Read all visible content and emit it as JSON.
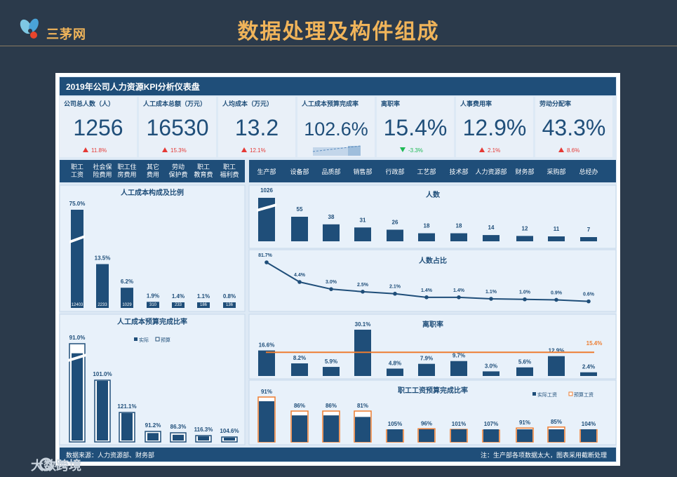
{
  "slide": {
    "brand": "三茅网",
    "title": "数据处理及构件组成"
  },
  "dashboard": {
    "title": "2019年公司人力资源KPI分析仪表盘",
    "footer_left": "数据来源：人力资源部、财务部",
    "footer_right": "注：生产部各项数据太大，图表采用截断处理"
  },
  "watermark": {
    "text": "大数跨境"
  },
  "colors": {
    "navy": "#1f4e79",
    "panel": "#dde9f5",
    "accent": "#f0b45a",
    "up": "#e53935",
    "down": "#1db954",
    "orange": "#ed7d31"
  },
  "kpis": [
    {
      "label": "公司总人数（人）",
      "value": "1256",
      "change": "11.8%",
      "dir": "up"
    },
    {
      "label": "人工成本总额（万元）",
      "value": "16530",
      "change": "15.3%",
      "dir": "up"
    },
    {
      "label": "人均成本（万元）",
      "value": "13.2",
      "change": "12.1%",
      "dir": "up"
    },
    {
      "label": "人工成本预算完成率",
      "value": "102.6%",
      "change": "",
      "dir": "none"
    },
    {
      "label": "离职率",
      "value": "15.4%",
      "change": "-3.3%",
      "dir": "down"
    },
    {
      "label": "人事费用率",
      "value": "12.9%",
      "change": "2.1%",
      "dir": "up"
    },
    {
      "label": "劳动分配率",
      "value": "43.3%",
      "change": "8.6%",
      "dir": "up"
    }
  ],
  "chart_data": [
    {
      "type": "bar",
      "title": "人工成本构成及比例",
      "categories": [
        "职工\n工资",
        "社会保\n险费用",
        "职工住\n房费用",
        "其它\n费用",
        "劳动\n保护费",
        "职工\n教育费",
        "职工\n福利费"
      ],
      "percent_labels": [
        "75.0%",
        "13.5%",
        "6.2%",
        "1.9%",
        "1.4%",
        "1.1%",
        "0.8%"
      ],
      "values": [
        12403,
        2233,
        1029,
        310,
        233,
        186,
        136
      ],
      "value_labels": [
        "12403",
        "2233",
        "1029",
        "310",
        "233",
        "186",
        "136"
      ],
      "truncated": [
        true,
        false,
        false,
        false,
        false,
        false,
        false
      ]
    },
    {
      "type": "bar",
      "title": "人工成本预算完成比率",
      "legend": [
        "实际",
        "预算"
      ],
      "categories": [
        "职工\n工资",
        "社会保\n险费用",
        "职工住\n房费用",
        "其它\n费用",
        "劳动\n保护费",
        "职工\n教育费",
        "职工\n福利费"
      ],
      "values": [
        91.0,
        101.0,
        121.1,
        91.2,
        86.3,
        116.3,
        104.6
      ],
      "value_labels": [
        "91.0%",
        "101.0%",
        "121.1%",
        "91.2%",
        "86.3%",
        "116.3%",
        "104.6%"
      ],
      "truncated": [
        true,
        false,
        false,
        false,
        false,
        false,
        false
      ]
    },
    {
      "type": "bar",
      "title": "人数",
      "categories": [
        "生产部",
        "设备部",
        "品质部",
        "销售部",
        "行政部",
        "工艺部",
        "技术部",
        "人力资源部",
        "财务部",
        "采购部",
        "总经办"
      ],
      "values": [
        1026,
        55,
        38,
        31,
        26,
        18,
        18,
        14,
        12,
        11,
        7
      ],
      "value_labels": [
        "1026",
        "55",
        "38",
        "31",
        "26",
        "18",
        "18",
        "14",
        "12",
        "11",
        "7"
      ],
      "truncated": [
        true,
        false,
        false,
        false,
        false,
        false,
        false,
        false,
        false,
        false,
        false
      ]
    },
    {
      "type": "line",
      "title": "人数占比",
      "categories": [
        "生产部",
        "设备部",
        "品质部",
        "销售部",
        "行政部",
        "工艺部",
        "技术部",
        "人力资源部",
        "财务部",
        "采购部",
        "总经办"
      ],
      "values": [
        81.7,
        4.4,
        3.0,
        2.5,
        2.1,
        1.4,
        1.4,
        1.1,
        1.0,
        0.9,
        0.6
      ],
      "value_labels": [
        "81.7%",
        "4.4%",
        "3.0%",
        "2.5%",
        "2.1%",
        "1.4%",
        "1.4%",
        "1.1%",
        "1.0%",
        "0.9%",
        "0.6%"
      ]
    },
    {
      "type": "bar",
      "title": "离职率",
      "categories": [
        "生产部",
        "设备部",
        "品质部",
        "销售部",
        "行政部",
        "工艺部",
        "技术部",
        "人力资源部",
        "财务部",
        "采购部",
        "总经办"
      ],
      "values": [
        16.6,
        8.2,
        5.9,
        30.1,
        4.8,
        7.9,
        9.7,
        3.0,
        5.6,
        12.9,
        2.4
      ],
      "value_labels": [
        "16.6%",
        "8.2%",
        "5.9%",
        "30.1%",
        "4.8%",
        "7.9%",
        "9.7%",
        "3.0%",
        "5.6%",
        "12.9%",
        "2.4%"
      ],
      "average": 15.4,
      "average_label": "15.4%"
    },
    {
      "type": "bar",
      "title": "职工工资预算完成比率",
      "legend": [
        "实际工资",
        "预算工资"
      ],
      "categories": [
        "生产部",
        "设备部",
        "品质部",
        "销售部",
        "行政部",
        "工艺部",
        "技术部",
        "人力资源部",
        "财务部",
        "采购部",
        "总经办"
      ],
      "values": [
        91,
        86,
        86,
        81,
        105,
        96,
        101,
        107,
        91,
        85,
        104
      ],
      "value_labels": [
        "91%",
        "86%",
        "86%",
        "81%",
        "105%",
        "96%",
        "101%",
        "107%",
        "91%",
        "85%",
        "104%"
      ]
    }
  ]
}
